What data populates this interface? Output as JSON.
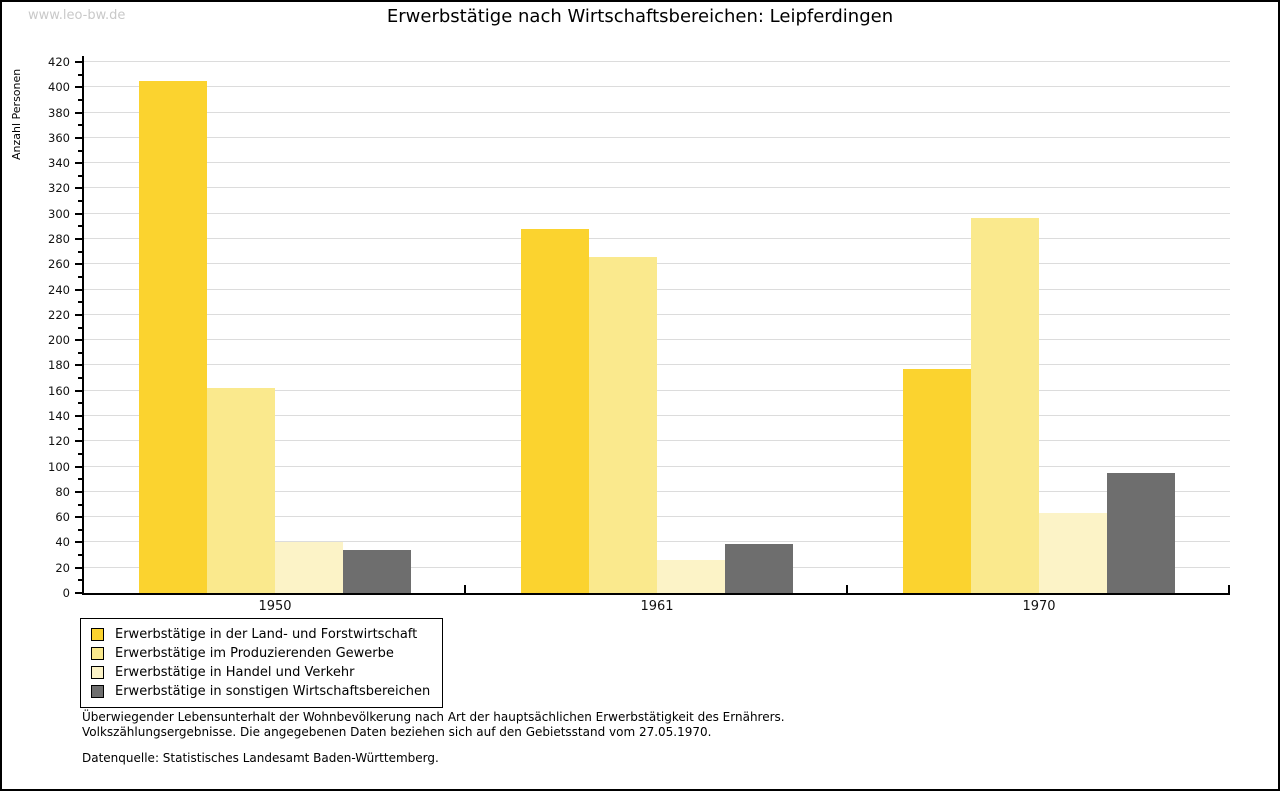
{
  "watermark": "www.leo-bw.de",
  "title": "Erwerbstätige nach Wirtschaftsbereichen: Leipferdingen",
  "chart_data": {
    "type": "bar",
    "title": "Erwerbstätige nach Wirtschaftsbereichen: Leipferdingen",
    "xlabel": "",
    "ylabel": "Anzahl Personen",
    "categories": [
      "1950",
      "1961",
      "1970"
    ],
    "series": [
      {
        "name": "Erwerbstätige in der Land- und Forstwirtschaft",
        "color": "#FBD32F",
        "values": [
          405,
          288,
          177
        ]
      },
      {
        "name": "Erwerbstätige im Produzierenden Gewerbe",
        "color": "#FAE98D",
        "values": [
          162,
          266,
          297
        ]
      },
      {
        "name": "Erwerbstätige in Handel und Verkehr",
        "color": "#FCF3C7",
        "values": [
          40,
          26,
          63
        ]
      },
      {
        "name": "Erwerbstätige in sonstigen Wirtschaftsbereichen",
        "color": "#6E6E6E",
        "values": [
          34,
          39,
          95
        ]
      }
    ],
    "ylim": [
      0,
      420
    ],
    "ytick_step": 20,
    "yminortick_step": 10,
    "grid": "horizontal-major",
    "gridline_color": "#DCDCDC",
    "legend_position": "bottom-left"
  },
  "footnotes": {
    "line1": "Überwiegender Lebensunterhalt der Wohnbevölkerung nach Art der hauptsächlichen Erwerbstätigkeit des Ernährers.",
    "line2": "Volkszählungsergebnisse. Die angegebenen Daten beziehen sich auf den Gebietsstand vom 27.05.1970.",
    "source": "Datenquelle: Statistisches Landesamt Baden-Württemberg."
  }
}
